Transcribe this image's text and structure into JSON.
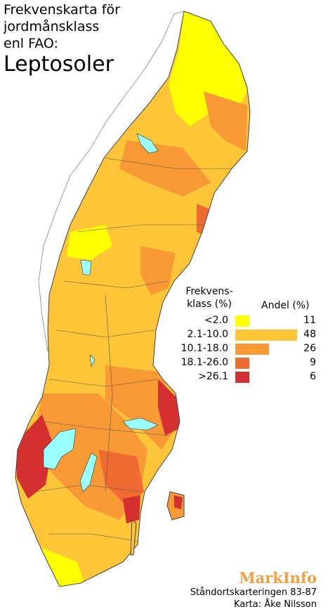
{
  "title": {
    "lines": [
      "Frekvenskarta för",
      "jordmånsklass",
      "enl FAO:"
    ],
    "subject": "Leptosoler"
  },
  "legend": {
    "class_header": [
      "Frekvens-",
      "klass (%)"
    ],
    "share_header": "Andel (%)",
    "rows": [
      {
        "label": "<2.0",
        "share": 11,
        "color": "#ffff00"
      },
      {
        "label": "2.1-10.0",
        "share": 48,
        "color": "#fdc537"
      },
      {
        "label": "10.1-18.0",
        "share": 26,
        "color": "#f79a35"
      },
      {
        "label": "18.1-26.0",
        "share": 9,
        "color": "#ef6b32"
      },
      {
        "label": ">26.1",
        "share": 6,
        "color": "#d53030"
      }
    ]
  },
  "lakes_color": "#99ffff",
  "footer": {
    "brand": "MarkInfo",
    "source": "Ståndortskarteringen 83-87",
    "author": "Karta: Åke Nilsson"
  }
}
